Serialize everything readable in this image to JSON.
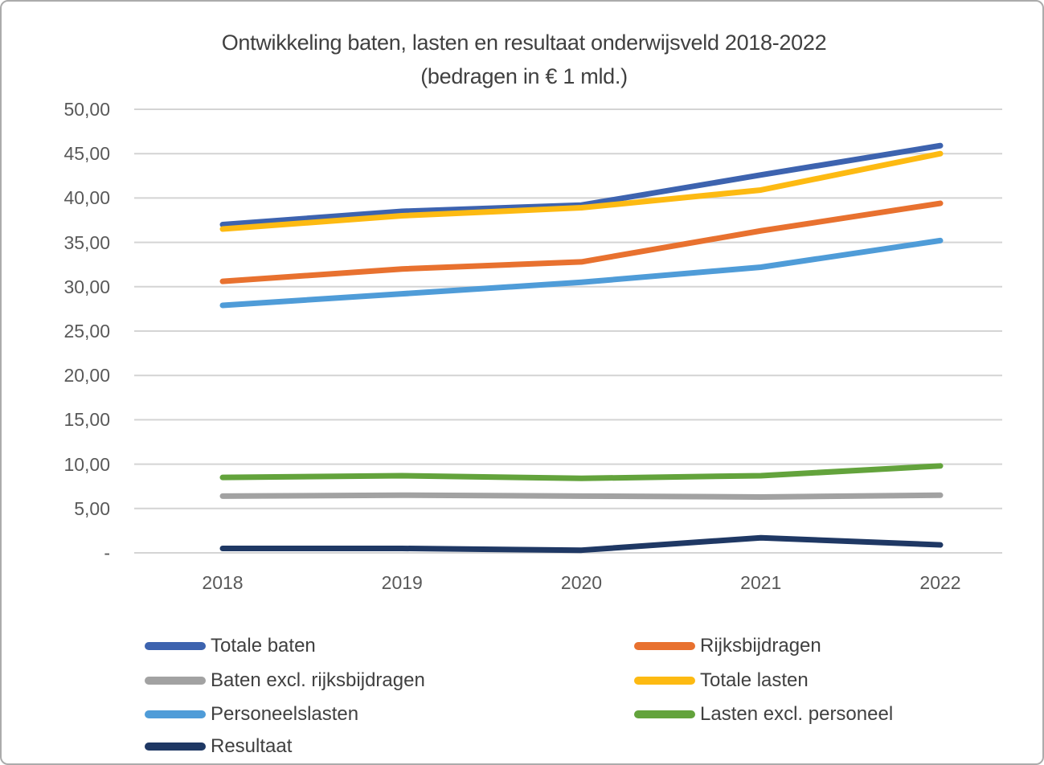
{
  "title": {
    "line1": "Ontwikkeling baten, lasten en resultaat onderwijsveld 2018-2022",
    "line2": "(bedragen in € 1 mld.)"
  },
  "chart_data": {
    "type": "line",
    "title": "Ontwikkeling baten, lasten en resultaat onderwijsveld 2018-2022",
    "subtitle": "(bedragen in € 1 mld.)",
    "categories": [
      "2018",
      "2019",
      "2020",
      "2021",
      "2022"
    ],
    "series": [
      {
        "name": "Totale baten",
        "color": "#3d63af",
        "values": [
          37.0,
          38.5,
          39.2,
          42.6,
          45.9
        ]
      },
      {
        "name": "Rijksbijdragen",
        "color": "#e8712f",
        "values": [
          30.6,
          32.0,
          32.8,
          36.3,
          39.4
        ]
      },
      {
        "name": "Baten excl. rijksbijdragen",
        "color": "#a2a2a2",
        "values": [
          6.4,
          6.5,
          6.4,
          6.3,
          6.5
        ]
      },
      {
        "name": "Totale lasten",
        "color": "#fdba12",
        "values": [
          36.5,
          38.0,
          38.9,
          40.9,
          45.0
        ]
      },
      {
        "name": "Personeelslasten",
        "color": "#4f9cd8",
        "values": [
          27.9,
          29.2,
          30.5,
          32.2,
          35.2
        ]
      },
      {
        "name": "Lasten excl. personeel",
        "color": "#63a33c",
        "values": [
          8.5,
          8.7,
          8.4,
          8.7,
          9.8
        ]
      },
      {
        "name": "Resultaat",
        "color": "#1f3864",
        "values": [
          0.5,
          0.5,
          0.3,
          1.7,
          0.9
        ]
      }
    ],
    "y_ticks": [
      {
        "value": 50,
        "label": "50,00"
      },
      {
        "value": 45,
        "label": "45,00"
      },
      {
        "value": 40,
        "label": "40,00"
      },
      {
        "value": 35,
        "label": "35,00"
      },
      {
        "value": 30,
        "label": "30,00"
      },
      {
        "value": 25,
        "label": "25,00"
      },
      {
        "value": 20,
        "label": "20,00"
      },
      {
        "value": 15,
        "label": "15,00"
      },
      {
        "value": 10,
        "label": "10,00"
      },
      {
        "value": 5,
        "label": "5,00"
      },
      {
        "value": 0,
        "label": "-"
      }
    ],
    "ylim": [
      0,
      50
    ],
    "grid": true,
    "legend_position": "bottom",
    "legend_columns": 2,
    "legend_rows": [
      [
        0,
        1
      ],
      [
        2,
        3
      ],
      [
        4,
        5
      ],
      [
        6
      ]
    ]
  }
}
